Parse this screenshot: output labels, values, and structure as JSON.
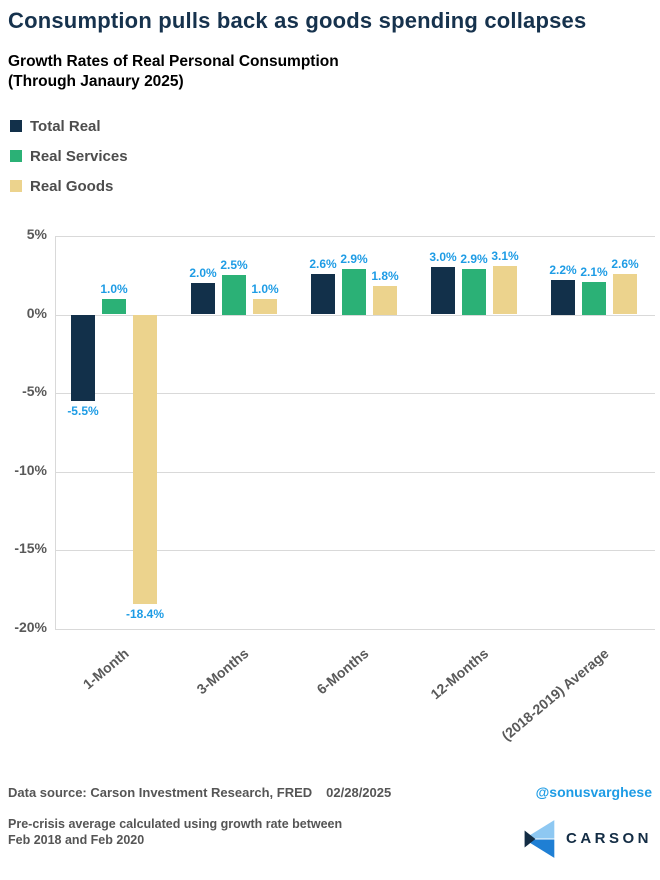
{
  "header": {
    "title": "Consumption pulls back as goods spending collapses",
    "subtitle_line1": "Growth Rates of Real Personal Consumption",
    "subtitle_line2": "(Through Janaury 2025)"
  },
  "chart_data": {
    "type": "bar",
    "title": "Growth Rates of Real Personal Consumption (Through Janaury 2025)",
    "categories": [
      "1-Month",
      "3-Months",
      "6-Months",
      "12-Months",
      "(2018-2019) Average"
    ],
    "series": [
      {
        "name": "Total Real",
        "color": "#12304a",
        "values": [
          -5.5,
          2.0,
          2.6,
          3.0,
          2.2
        ],
        "labels": [
          "-5.5%",
          "2.0%",
          "2.6%",
          "3.0%",
          "2.2%"
        ]
      },
      {
        "name": "Real Services",
        "color": "#2bb176",
        "values": [
          1.0,
          2.5,
          2.9,
          2.9,
          2.1
        ],
        "labels": [
          "1.0%",
          "2.5%",
          "2.9%",
          "2.9%",
          "2.1%"
        ]
      },
      {
        "name": "Real Goods",
        "color": "#ecd38d",
        "values": [
          -18.4,
          1.0,
          1.8,
          3.1,
          2.6
        ],
        "labels": [
          "-18.4%",
          "1.0%",
          "1.8%",
          "3.1%",
          "2.6%"
        ]
      }
    ],
    "xlabel": "",
    "ylabel": "",
    "ylim": [
      -20,
      5
    ],
    "yticks": [
      5,
      0,
      -5,
      -10,
      -15,
      -20
    ],
    "ytick_labels": [
      "5%",
      "0%",
      "-5%",
      "-10%",
      "-15%",
      "-20%"
    ],
    "value_label_color": "#1e9ce5",
    "grid": true,
    "legend_position": "top-left"
  },
  "colors": {
    "title_navy": "#16324d",
    "text_gray": "#595959",
    "legend_text": "#4d4d4d",
    "grid": "#d9d9d9",
    "handle_blue": "#1e9ce5",
    "brand_navy": "#132c44",
    "logo_light_blue": "#8ec8f2",
    "logo_blue": "#1f7fd4"
  },
  "footer": {
    "source_label": "Data source: Carson Investment Research, FRED",
    "source_date": "02/28/2025",
    "handle": "@sonusvarghese",
    "note_line1": "Pre-crisis average calculated using growth rate between",
    "note_line2": "Feb 2018 and Feb 2020",
    "brand": "CARSON",
    "logo_icon": "carson-chevron-left"
  }
}
